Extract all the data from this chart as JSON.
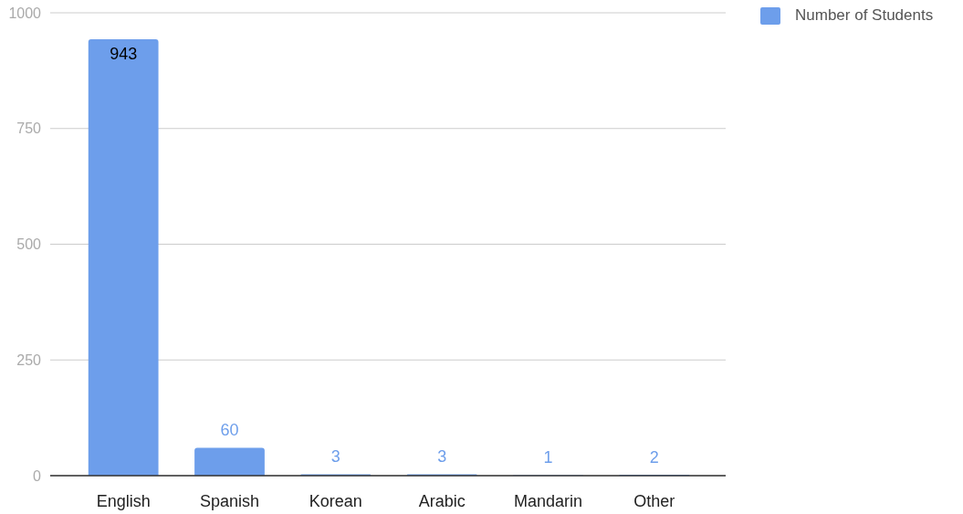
{
  "chart_data": {
    "type": "bar",
    "categories": [
      "English",
      "Spanish",
      "Korean",
      "Arabic",
      "Mandarin",
      "Other"
    ],
    "series": [
      {
        "name": "Number of Students",
        "color": "#6d9eeb",
        "values": [
          943,
          60,
          3,
          3,
          1,
          2
        ]
      }
    ],
    "ylim": [
      0,
      1000
    ],
    "yticks": [
      0,
      250,
      500,
      750,
      1000
    ],
    "grid": "y",
    "legend": "top right",
    "data_labels": true
  }
}
